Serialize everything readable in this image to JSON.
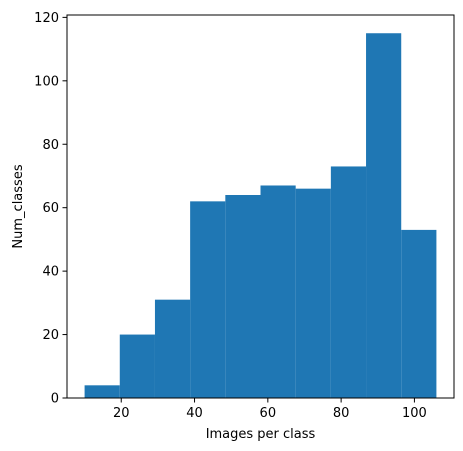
{
  "chart_data": {
    "type": "bar",
    "title": "",
    "xlabel": "Images per class",
    "ylabel": "Num_classes",
    "bin_edges": [
      10,
      19.6,
      29.2,
      38.8,
      48.4,
      58,
      67.6,
      77.2,
      86.8,
      96.4,
      106
    ],
    "values": [
      4,
      20,
      31,
      62,
      64,
      67,
      66,
      73,
      115,
      53
    ],
    "xlim": [
      5.2,
      110.8
    ],
    "ylim": [
      0,
      120.75
    ],
    "xticks": [
      20,
      40,
      60,
      80,
      100
    ],
    "yticks": [
      0,
      20,
      40,
      60,
      80,
      100,
      120
    ],
    "bar_color": "#1f77b4",
    "grid": false,
    "legend": "none"
  }
}
